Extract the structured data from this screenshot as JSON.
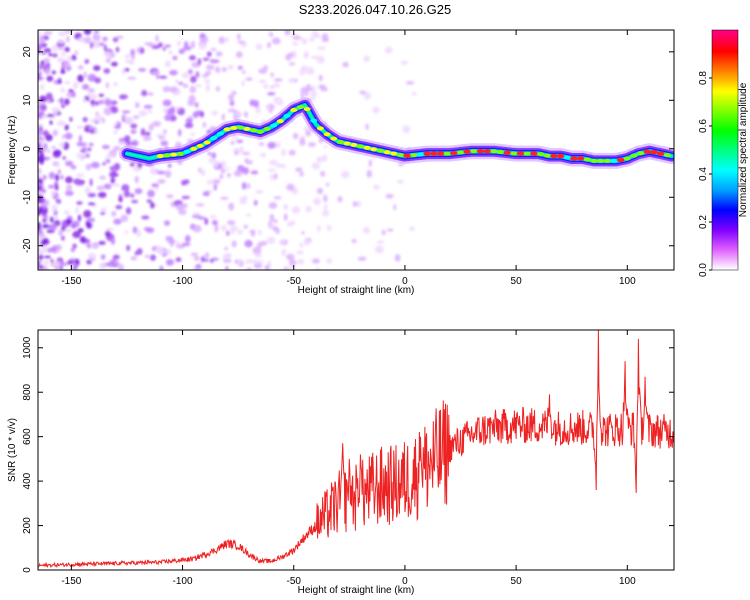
{
  "chart_data": [
    {
      "type": "heatmap",
      "title": "S233.2026.047.10.26.G25",
      "xlabel": "Height of straight line (km)",
      "ylabel": "Frequency (Hz)",
      "xlim": [
        -165,
        121
      ],
      "ylim": [
        -25,
        24.5
      ],
      "xticks": [
        -150,
        -100,
        -50,
        0,
        50,
        100
      ],
      "yticks": [
        -20,
        -10,
        0,
        10,
        20
      ],
      "grid": false,
      "colorbar": {
        "label": "Normalized spectral amplitude",
        "range": [
          0,
          1
        ],
        "ticks": [
          0.0,
          0.2,
          0.4,
          0.6,
          0.8
        ],
        "colors": [
          "#ffffff",
          "#e060ff",
          "#7f00ff",
          "#0000ff",
          "#00a0ff",
          "#00ffff",
          "#00ff80",
          "#00ff00",
          "#80ff00",
          "#ffff00",
          "#ff8000",
          "#ff0000",
          "#ff0080"
        ]
      },
      "ridge": {
        "x": [
          -125,
          -115,
          -110,
          -100,
          -95,
          -90,
          -85,
          -80,
          -75,
          -70,
          -65,
          -60,
          -55,
          -50,
          -45,
          -40,
          -35,
          -30,
          -25,
          -20,
          -15,
          -10,
          -5,
          0,
          10,
          20,
          30,
          40,
          50,
          60,
          65,
          70,
          75,
          80,
          85,
          90,
          95,
          100,
          105,
          110,
          115,
          120
        ],
        "y": [
          -1,
          -2,
          -1.5,
          -1,
          0,
          1,
          2.5,
          4,
          4.5,
          4,
          3.5,
          4.5,
          6,
          8,
          9,
          5,
          3,
          1.5,
          1,
          0.5,
          0,
          -0.5,
          -1,
          -1.5,
          -1,
          -1,
          -0.5,
          -0.5,
          -1,
          -1,
          -1.5,
          -1.5,
          -2,
          -2,
          -2.5,
          -2.5,
          -2.5,
          -2,
          -1,
          -0.5,
          -1,
          -1.5
        ]
      }
    },
    {
      "type": "line",
      "xlabel": "Height of straight line (km)",
      "ylabel": "SNR (10 * v/v)",
      "xlim": [
        -165,
        121
      ],
      "ylim": [
        0,
        1080
      ],
      "xticks": [
        -150,
        -100,
        -50,
        0,
        50,
        100
      ],
      "yticks": [
        0,
        200,
        400,
        600,
        800,
        1000
      ],
      "grid": false,
      "color": "#ee2222",
      "series": [
        {
          "x": [
            -165,
            -150,
            -130,
            -110,
            -95,
            -85,
            -80,
            -75,
            -70,
            -65,
            -60,
            -55,
            -50,
            -45,
            -40,
            -35,
            -30,
            -25,
            -20,
            -15,
            -10,
            -5,
            0,
            5,
            10,
            15,
            20,
            25,
            30,
            35,
            40,
            50,
            60,
            70,
            80,
            90,
            100,
            110,
            121
          ],
          "y": [
            20,
            25,
            30,
            35,
            50,
            90,
            120,
            110,
            70,
            40,
            40,
            60,
            90,
            150,
            200,
            250,
            300,
            320,
            330,
            360,
            380,
            380,
            400,
            430,
            470,
            500,
            550,
            580,
            610,
            630,
            640,
            650,
            650,
            640,
            640,
            630,
            640,
            630,
            620
          ]
        }
      ],
      "spikes": [
        {
          "x": -28,
          "y": 570
        },
        {
          "x": -25,
          "y": 500
        },
        {
          "x": -20,
          "y": 520
        },
        {
          "x": 7,
          "y": 600
        },
        {
          "x": 65,
          "y": 790
        },
        {
          "x": 86,
          "y": 280
        },
        {
          "x": 87,
          "y": 1080
        },
        {
          "x": 99,
          "y": 940
        },
        {
          "x": 104,
          "y": 270
        },
        {
          "x": 105,
          "y": 1040
        },
        {
          "x": 108,
          "y": 870
        }
      ]
    }
  ]
}
